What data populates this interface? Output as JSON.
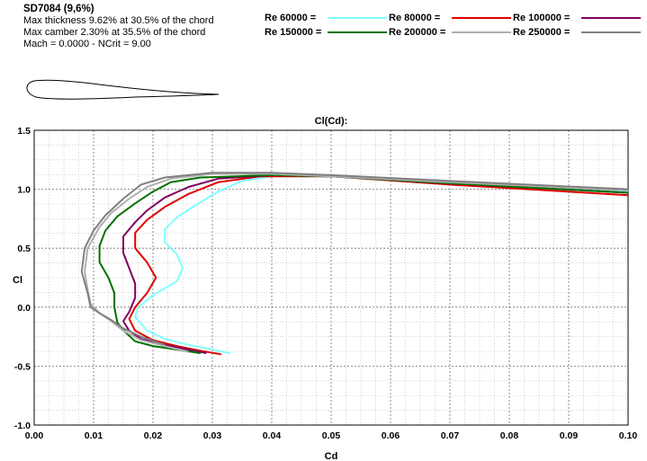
{
  "airfoil": {
    "name": "SD7084 (9,6%)",
    "thickness": "Max thickness 9.62% at 30.5% of the chord",
    "camber": "Max camber 2.30% at 35.5% of the chord",
    "conditions": "Mach = 0.0000 - NCrit = 9.00"
  },
  "legend": [
    {
      "label": "Re 60000 =",
      "color": "#80ffff"
    },
    {
      "label": "Re 80000 =",
      "color": "#e00000"
    },
    {
      "label": "Re 100000 =",
      "color": "#800060"
    },
    {
      "label": "Re 150000 =",
      "color": "#007000"
    },
    {
      "label": "Re 200000 =",
      "color": "#b0b0b0"
    },
    {
      "label": "Re 250000 =",
      "color": "#808080"
    }
  ],
  "chart_data": {
    "type": "line",
    "title": "Cl(Cd):",
    "xlabel": "Cd",
    "ylabel": "Cl",
    "xlim": [
      0.0,
      0.1
    ],
    "ylim": [
      -1.0,
      1.5
    ],
    "xticks": [
      "0.00",
      "0.01",
      "0.02",
      "0.03",
      "0.04",
      "0.05",
      "0.06",
      "0.07",
      "0.08",
      "0.09",
      "0.10"
    ],
    "yticks": [
      "1.5",
      "1.0",
      "0.5",
      "0.0",
      "-0.5",
      "-1.0"
    ],
    "grid": true,
    "series": [
      {
        "name": "Re 60000",
        "color": "#80ffff",
        "points": [
          [
            0.033,
            -0.39
          ],
          [
            0.03,
            -0.36
          ],
          [
            0.026,
            -0.32
          ],
          [
            0.022,
            -0.27
          ],
          [
            0.019,
            -0.2
          ],
          [
            0.017,
            -0.08
          ],
          [
            0.0175,
            0.0
          ],
          [
            0.02,
            0.1
          ],
          [
            0.024,
            0.22
          ],
          [
            0.025,
            0.33
          ],
          [
            0.024,
            0.45
          ],
          [
            0.022,
            0.55
          ],
          [
            0.022,
            0.66
          ],
          [
            0.024,
            0.76
          ],
          [
            0.027,
            0.86
          ],
          [
            0.031,
            0.98
          ],
          [
            0.035,
            1.07
          ],
          [
            0.04,
            1.11
          ],
          [
            0.05,
            1.11
          ],
          [
            0.07,
            1.04
          ],
          [
            0.1,
            0.98
          ]
        ]
      },
      {
        "name": "Re 80000",
        "color": "#e00000",
        "points": [
          [
            0.0315,
            -0.4
          ],
          [
            0.028,
            -0.37
          ],
          [
            0.024,
            -0.33
          ],
          [
            0.02,
            -0.28
          ],
          [
            0.017,
            -0.2
          ],
          [
            0.016,
            -0.1
          ],
          [
            0.017,
            0.0
          ],
          [
            0.019,
            0.12
          ],
          [
            0.0205,
            0.25
          ],
          [
            0.019,
            0.38
          ],
          [
            0.017,
            0.5
          ],
          [
            0.017,
            0.63
          ],
          [
            0.019,
            0.74
          ],
          [
            0.022,
            0.85
          ],
          [
            0.026,
            0.96
          ],
          [
            0.031,
            1.06
          ],
          [
            0.038,
            1.11
          ],
          [
            0.05,
            1.11
          ],
          [
            0.07,
            1.04
          ],
          [
            0.1,
            0.95
          ]
        ]
      },
      {
        "name": "Re 100000",
        "color": "#800060",
        "points": [
          [
            0.029,
            -0.39
          ],
          [
            0.026,
            -0.36
          ],
          [
            0.022,
            -0.32
          ],
          [
            0.018,
            -0.27
          ],
          [
            0.016,
            -0.2
          ],
          [
            0.015,
            -0.12
          ],
          [
            0.016,
            -0.04
          ],
          [
            0.017,
            0.08
          ],
          [
            0.017,
            0.2
          ],
          [
            0.016,
            0.33
          ],
          [
            0.015,
            0.46
          ],
          [
            0.015,
            0.6
          ],
          [
            0.017,
            0.72
          ],
          [
            0.019,
            0.82
          ],
          [
            0.022,
            0.93
          ],
          [
            0.026,
            1.02
          ],
          [
            0.031,
            1.09
          ],
          [
            0.04,
            1.12
          ],
          [
            0.05,
            1.11
          ],
          [
            0.07,
            1.05
          ],
          [
            0.1,
            0.97
          ]
        ]
      },
      {
        "name": "Re 150000",
        "color": "#007000",
        "points": [
          [
            0.028,
            -0.39
          ],
          [
            0.024,
            -0.36
          ],
          [
            0.02,
            -0.33
          ],
          [
            0.017,
            -0.29
          ],
          [
            0.0155,
            -0.22
          ],
          [
            0.014,
            -0.13
          ],
          [
            0.0135,
            0.0
          ],
          [
            0.0135,
            0.12
          ],
          [
            0.0125,
            0.25
          ],
          [
            0.011,
            0.38
          ],
          [
            0.011,
            0.52
          ],
          [
            0.012,
            0.65
          ],
          [
            0.014,
            0.77
          ],
          [
            0.017,
            0.88
          ],
          [
            0.02,
            0.98
          ],
          [
            0.023,
            1.06
          ],
          [
            0.028,
            1.1
          ],
          [
            0.04,
            1.12
          ],
          [
            0.05,
            1.11
          ],
          [
            0.07,
            1.05
          ],
          [
            0.1,
            0.97
          ]
        ]
      },
      {
        "name": "Re 200000",
        "color": "#b0b0b0",
        "points": [
          [
            0.026,
            -0.38
          ],
          [
            0.022,
            -0.33
          ],
          [
            0.018,
            -0.28
          ],
          [
            0.015,
            -0.2
          ],
          [
            0.013,
            -0.12
          ],
          [
            0.011,
            -0.05
          ],
          [
            0.0095,
            0.03
          ],
          [
            0.009,
            0.15
          ],
          [
            0.0085,
            0.3
          ],
          [
            0.009,
            0.5
          ],
          [
            0.011,
            0.68
          ],
          [
            0.013,
            0.8
          ],
          [
            0.016,
            0.92
          ],
          [
            0.019,
            1.02
          ],
          [
            0.023,
            1.09
          ],
          [
            0.03,
            1.13
          ],
          [
            0.04,
            1.13
          ],
          [
            0.05,
            1.11
          ],
          [
            0.07,
            1.06
          ],
          [
            0.1,
            0.99
          ]
        ]
      },
      {
        "name": "Re 250000",
        "color": "#808080",
        "points": [
          [
            0.022,
            -0.32
          ],
          [
            0.018,
            -0.25
          ],
          [
            0.015,
            -0.18
          ],
          [
            0.013,
            -0.11
          ],
          [
            0.011,
            -0.05
          ],
          [
            0.0095,
            0.0
          ],
          [
            0.009,
            0.12
          ],
          [
            0.008,
            0.3
          ],
          [
            0.0085,
            0.5
          ],
          [
            0.01,
            0.65
          ],
          [
            0.012,
            0.78
          ],
          [
            0.015,
            0.92
          ],
          [
            0.018,
            1.04
          ],
          [
            0.022,
            1.1
          ],
          [
            0.03,
            1.14
          ],
          [
            0.04,
            1.14
          ],
          [
            0.05,
            1.12
          ],
          [
            0.07,
            1.07
          ],
          [
            0.1,
            1.0
          ]
        ]
      }
    ]
  }
}
